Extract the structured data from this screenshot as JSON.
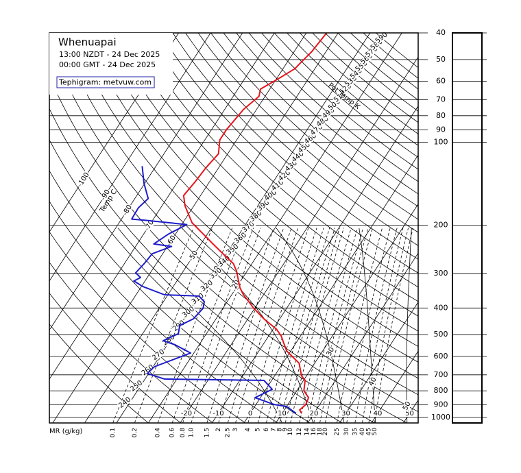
{
  "chart_data": {
    "type": "tephigram",
    "title": "Whenuapai",
    "local_time": "13:00 NZDT - 24 Dec 2025",
    "utc_time": "00:00 GMT - 24 Dec 2025",
    "annotation": "Tephigram: metvuw.com",
    "temperature_title": "Temp C",
    "potential_temperature_title": "Pot Temp K",
    "mixing_ratio_title": "MR (g/kg)",
    "log_y": true,
    "ylim": [
      1047,
      40
    ],
    "yticks": [
      40,
      50,
      60,
      70,
      80,
      90,
      100,
      200,
      300,
      400,
      500,
      600,
      700,
      800,
      900,
      1000
    ],
    "isotherms": [
      -100,
      -90,
      -80,
      -70,
      -60,
      -50,
      -40,
      -30,
      -20,
      -10,
      0,
      10,
      20,
      30,
      40,
      50
    ],
    "isentropes": [
      240,
      250,
      260,
      270,
      280,
      290,
      300,
      310,
      320,
      330,
      340,
      350,
      360,
      370,
      380,
      390,
      400,
      410,
      420,
      430,
      440,
      450,
      460,
      470,
      480,
      490,
      500,
      510,
      520,
      530,
      540,
      550,
      560,
      570,
      580,
      590
    ],
    "wet_adiabats": [
      10,
      20,
      30,
      40,
      50
    ],
    "mixing_ratios": [
      0.1,
      0.2,
      0.4,
      0.6,
      0.8,
      {
        "value": 1,
        "label": "1.0"
      },
      1.5,
      2,
      2.5,
      3,
      4,
      5,
      6,
      7,
      8,
      9,
      10,
      12,
      14,
      16,
      18,
      20,
      25,
      30,
      35,
      40,
      45,
      50
    ],
    "profiles": [
      {
        "color": "#e8141c",
        "pressure": [
          966,
          939,
          897,
          847,
          799,
          733,
          705,
          635,
          573,
          505,
          477,
          438,
          401,
          358,
          338,
          293,
          276,
          261,
          233,
          220,
          196,
          170,
          156,
          139,
          124,
          110,
          98,
          90,
          76,
          68,
          64,
          59,
          54,
          51,
          47,
          40
        ],
        "temperature": [
          16.1,
          14.8,
          15.6,
          15.1,
          12.2,
          10.5,
          8.4,
          5.1,
          -1.3,
          -6.1,
          -9.0,
          -15.0,
          -20.3,
          -26.3,
          -28.8,
          -33.4,
          -35.8,
          -39.4,
          -46.5,
          -50.0,
          -57.1,
          -62.8,
          -65.3,
          -64.5,
          -64.0,
          -62.9,
          -65.3,
          -65.3,
          -64.1,
          -61.9,
          -62.9,
          -59.6,
          -56.3,
          -55.6,
          -54.5,
          -53.6
        ]
      },
      {
        "color": "#1c1ccc",
        "pressure": [
          966,
          912,
          897,
          847,
          790,
          733,
          725,
          692,
          654,
          583,
          544,
          526,
          496,
          463,
          438,
          401,
          379,
          362,
          358,
          334,
          319,
          310,
          298,
          276,
          254,
          239,
          234,
          216,
          199,
          192,
          190,
          173,
          160,
          141,
          122
        ],
        "temperature": [
          14.4,
          10.0,
          5.7,
          -1.7,
          2.0,
          -2.4,
          -33.9,
          -40.4,
          -39.6,
          -31.0,
          -37.6,
          -42.1,
          -38.8,
          -40.0,
          -37.1,
          -36.2,
          -37.2,
          -40.0,
          -51.1,
          -59.6,
          -63.5,
          -62.1,
          -64.6,
          -63.8,
          -63.3,
          -58.7,
          -64.8,
          -62.3,
          -58.4,
          -72.2,
          -76.8,
          -77.0,
          -75.8,
          -80.2,
          -84.3
        ]
      }
    ]
  }
}
